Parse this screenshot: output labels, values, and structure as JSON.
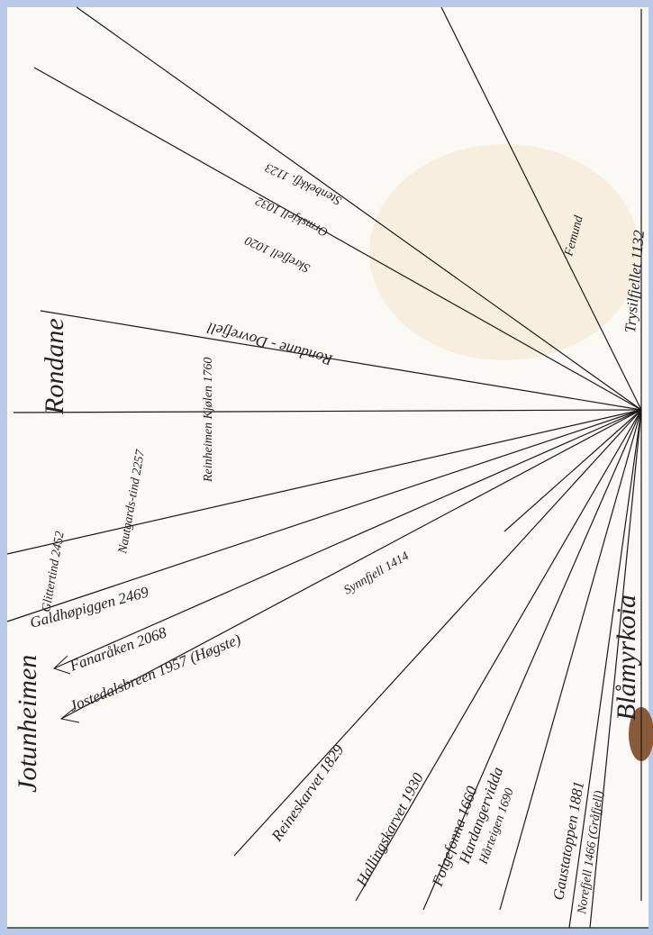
{
  "labels": {
    "jotunheimen": "Jotunheimen",
    "rondane": "Rondane",
    "rondane_dovrefjell": "Rondane - Dovrefjell",
    "skrefjell": "Skrefjell 1020",
    "ormskjell": "Ormskjell 1032",
    "stenfjell": "Stenbekkfj. 1123",
    "femund": "Femund",
    "trysilfjellet": "Trysilfjellet 1132",
    "reinheimen": "Reinheimen Kjølen 1760",
    "glittertind": "Glittertind 2452",
    "nautgardstind": "Nautgards-tind 2257",
    "galdhopiggen": "Galdhøpiggen 2469",
    "fanaraken": "Fanaråken 2068",
    "jostedalsbreen": "Jostedalsbreen 1957 (Høgste)",
    "synnfjell": "Synnfjell 1414",
    "reineskarvet": "Reineskarvet 1829",
    "hallingskarvet": "Hallingskarvet 1930",
    "folgefonna": "Folgefonna 1660",
    "hardangervidda": "Hardangervidda",
    "harteigen": "Hårteigen 1690",
    "gaustatoppen": "Gaustatoppen 1881",
    "norefjell": "Norefjell 1466 (Gråfjell)",
    "blamyrkoia": "Blåmyrkoia"
  }
}
